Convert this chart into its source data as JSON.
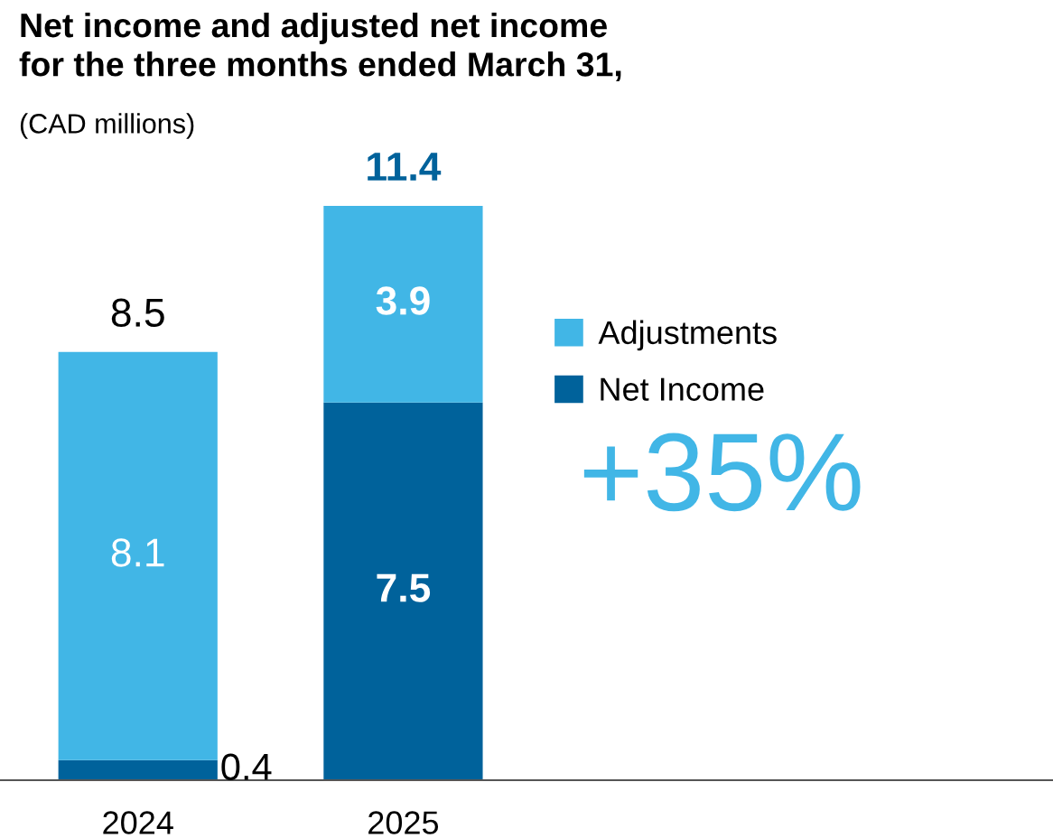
{
  "chart_data": {
    "type": "bar",
    "title": "Net income and adjusted net income\nfor the three months ended March 31,",
    "subtitle": "(CAD millions)",
    "categories": [
      "2024",
      "2025"
    ],
    "stacked": true,
    "data_labels": true,
    "legend": "right",
    "totals": [
      "8.5",
      "11.4"
    ],
    "annotations": [
      "+35%"
    ],
    "series": [
      {
        "name": "Net Income",
        "color": "#00629b",
        "values": [
          0.4,
          7.5
        ]
      },
      {
        "name": "Adjustments",
        "color": "#41b6e6",
        "values": [
          8.1,
          3.9
        ]
      }
    ]
  }
}
